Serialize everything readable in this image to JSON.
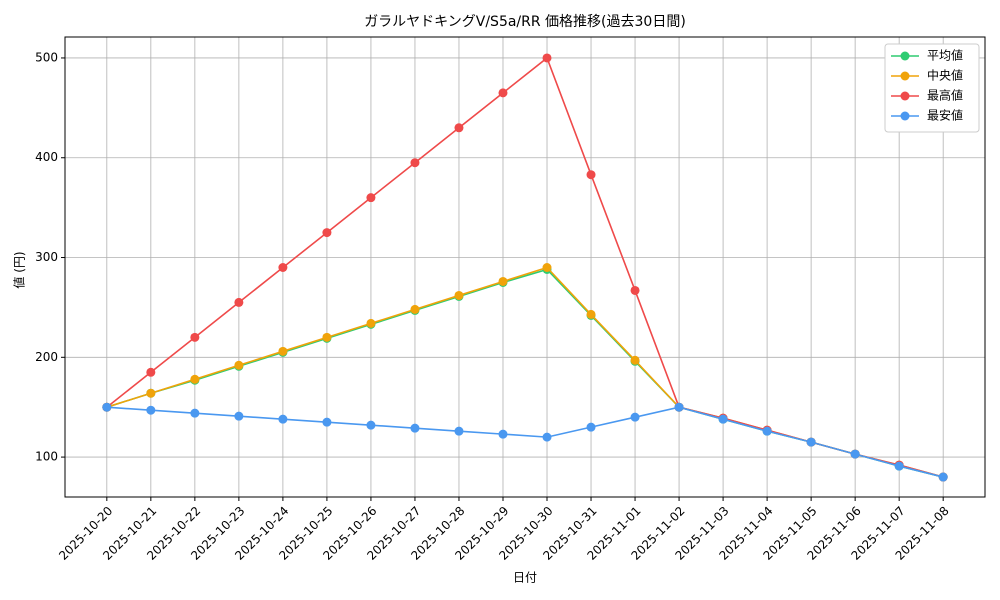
{
  "chart_data": {
    "type": "line",
    "title": "ガラルヤドキングV/S5a/RR 価格推移(過去30日間)",
    "x_label": "日付",
    "y_label": "値 (円)",
    "categories": [
      "2025-10-20",
      "2025-10-21",
      "2025-10-22",
      "2025-10-23",
      "2025-10-24",
      "2025-10-25",
      "2025-10-26",
      "2025-10-27",
      "2025-10-28",
      "2025-10-29",
      "2025-10-30",
      "2025-10-31",
      "2025-11-01",
      "2025-11-02",
      "2025-11-03",
      "2025-11-04",
      "2025-11-05",
      "2025-11-06",
      "2025-11-07",
      "2025-11-08"
    ],
    "series": [
      {
        "name": "平均値",
        "color": "#2ecc71",
        "values": [
          150,
          164,
          177,
          191,
          205,
          219,
          233,
          247,
          261,
          275,
          288,
          242,
          196,
          150,
          138,
          126,
          115,
          103,
          91,
          80
        ]
      },
      {
        "name": "中央値",
        "color": "#f0a30a",
        "values": [
          150,
          164,
          178,
          192,
          206,
          220,
          234,
          248,
          262,
          276,
          290,
          243,
          197,
          150,
          139,
          127,
          115,
          103,
          92,
          80
        ]
      },
      {
        "name": "最高値",
        "color": "#ef4a4a",
        "values": [
          150,
          185,
          220,
          255,
          290,
          325,
          360,
          395,
          430,
          465,
          500,
          383,
          267,
          150,
          139,
          127,
          115,
          103,
          92,
          80
        ]
      },
      {
        "name": "最安値",
        "color": "#4a98f0",
        "values": [
          150,
          147,
          144,
          141,
          138,
          135,
          132,
          129,
          126,
          123,
          120,
          130,
          140,
          150,
          138,
          126,
          115,
          103,
          91,
          80
        ]
      }
    ],
    "ylim": [
      60,
      521
    ],
    "yticks": [
      100,
      200,
      300,
      400,
      500
    ],
    "grid": true,
    "legend": "upper-right"
  }
}
